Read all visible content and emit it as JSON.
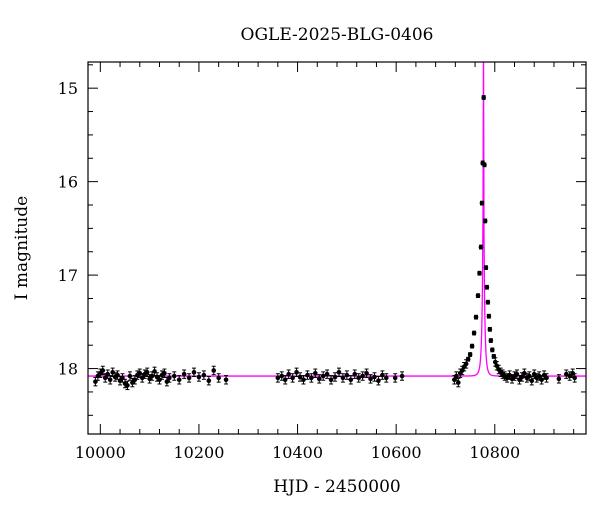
{
  "chart_data": {
    "type": "scatter",
    "title": "OGLE-2025-BLG-0406",
    "xlabel": "HJD - 2450000",
    "ylabel": "I magnitude",
    "xlim": [
      9975,
      10985
    ],
    "ylim": [
      18.7,
      14.72
    ],
    "y_inverted": true,
    "grid": false,
    "legend": "none",
    "x_ticks": [
      10000,
      10200,
      10400,
      10600,
      10800
    ],
    "y_ticks": [
      15,
      16,
      17,
      18
    ],
    "series": [
      {
        "kind": "observations",
        "color": "#000000",
        "points": [
          [
            9990,
            18.14
          ],
          [
            9995,
            18.08
          ],
          [
            10000,
            18.05
          ],
          [
            10005,
            18.02
          ],
          [
            10010,
            18.1
          ],
          [
            10015,
            18.06
          ],
          [
            10020,
            18.12
          ],
          [
            10025,
            18.04
          ],
          [
            10030,
            18.09
          ],
          [
            10035,
            18.07
          ],
          [
            10040,
            18.13
          ],
          [
            10045,
            18.1
          ],
          [
            10050,
            18.16
          ],
          [
            10055,
            18.18
          ],
          [
            10060,
            18.08
          ],
          [
            10065,
            18.15
          ],
          [
            10070,
            18.12
          ],
          [
            10075,
            18.07
          ],
          [
            10080,
            18.05
          ],
          [
            10085,
            18.1
          ],
          [
            10090,
            18.06
          ],
          [
            10095,
            18.04
          ],
          [
            10100,
            18.11
          ],
          [
            10105,
            18.08
          ],
          [
            10110,
            18.03
          ],
          [
            10115,
            18.09
          ],
          [
            10120,
            18.12
          ],
          [
            10125,
            18.07
          ],
          [
            10130,
            18.05
          ],
          [
            10135,
            18.14
          ],
          [
            10140,
            18.1
          ],
          [
            10150,
            18.08
          ],
          [
            10160,
            18.12
          ],
          [
            10170,
            18.06
          ],
          [
            10180,
            18.1
          ],
          [
            10190,
            18.04
          ],
          [
            10200,
            18.09
          ],
          [
            10210,
            18.07
          ],
          [
            10220,
            18.13
          ],
          [
            10230,
            18.02
          ],
          [
            10240,
            18.1
          ],
          [
            10255,
            18.12
          ],
          [
            10360,
            18.1
          ],
          [
            10368,
            18.08
          ],
          [
            10375,
            18.12
          ],
          [
            10382,
            18.06
          ],
          [
            10390,
            18.1
          ],
          [
            10398,
            18.04
          ],
          [
            10405,
            18.09
          ],
          [
            10412,
            18.12
          ],
          [
            10420,
            18.07
          ],
          [
            10428,
            18.1
          ],
          [
            10436,
            18.05
          ],
          [
            10444,
            18.11
          ],
          [
            10452,
            18.08
          ],
          [
            10460,
            18.06
          ],
          [
            10468,
            18.12
          ],
          [
            10476,
            18.09
          ],
          [
            10484,
            18.04
          ],
          [
            10492,
            18.1
          ],
          [
            10500,
            18.07
          ],
          [
            10508,
            18.12
          ],
          [
            10516,
            18.06
          ],
          [
            10524,
            18.1
          ],
          [
            10532,
            18.08
          ],
          [
            10540,
            18.05
          ],
          [
            10548,
            18.11
          ],
          [
            10556,
            18.09
          ],
          [
            10564,
            18.13
          ],
          [
            10572,
            18.07
          ],
          [
            10580,
            18.1
          ],
          [
            10598,
            18.1
          ],
          [
            10612,
            18.08
          ],
          [
            10718,
            18.12
          ],
          [
            10722,
            18.08
          ],
          [
            10726,
            18.15
          ],
          [
            10730,
            18.05
          ],
          [
            10734,
            18.02
          ],
          [
            10738,
            17.98
          ],
          [
            10742,
            17.95
          ],
          [
            10746,
            17.9
          ],
          [
            10750,
            17.85
          ],
          [
            10754,
            17.76
          ],
          [
            10758,
            17.62
          ],
          [
            10762,
            17.45
          ],
          [
            10766,
            17.22
          ],
          [
            10769,
            16.98
          ],
          [
            10772,
            16.7
          ],
          [
            10774,
            16.23
          ],
          [
            10775.5,
            15.8
          ],
          [
            10777.5,
            15.1
          ],
          [
            10779,
            15.82
          ],
          [
            10780.5,
            16.42
          ],
          [
            10782,
            16.92
          ],
          [
            10784,
            17.13
          ],
          [
            10786,
            17.29
          ],
          [
            10788,
            17.44
          ],
          [
            10790,
            17.58
          ],
          [
            10792,
            17.7
          ],
          [
            10795,
            17.8
          ],
          [
            10798,
            17.87
          ],
          [
            10801,
            17.93
          ],
          [
            10804,
            17.97
          ],
          [
            10808,
            18.01
          ],
          [
            10812,
            18.04
          ],
          [
            10816,
            18.06
          ],
          [
            10820,
            18.08
          ],
          [
            10825,
            18.1
          ],
          [
            10830,
            18.07
          ],
          [
            10835,
            18.11
          ],
          [
            10840,
            18.08
          ],
          [
            10845,
            18.06
          ],
          [
            10850,
            18.12
          ],
          [
            10855,
            18.09
          ],
          [
            10860,
            18.05
          ],
          [
            10865,
            18.1
          ],
          [
            10870,
            18.08
          ],
          [
            10875,
            18.13
          ],
          [
            10880,
            18.06
          ],
          [
            10885,
            18.1
          ],
          [
            10890,
            18.08
          ],
          [
            10895,
            18.12
          ],
          [
            10900,
            18.07
          ],
          [
            10905,
            18.1
          ],
          [
            10930,
            18.11
          ],
          [
            10945,
            18.06
          ],
          [
            10952,
            18.08
          ],
          [
            10958,
            18.05
          ],
          [
            10962,
            18.1
          ]
        ]
      },
      {
        "kind": "model",
        "color": "#ff00ff",
        "baseline_mag": 18.08,
        "t0": 10777,
        "u0": 0.0003,
        "tE": 4.5
      }
    ]
  }
}
